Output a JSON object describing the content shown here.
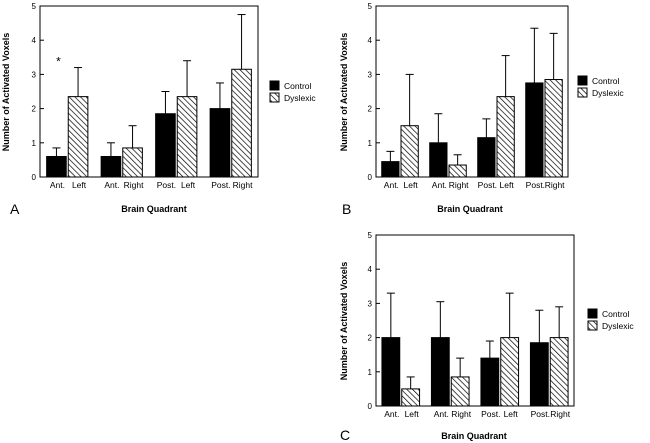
{
  "chart_data": [
    {
      "type": "bar",
      "panel_label": "A",
      "ylabel": "Number of Activated Voxels",
      "xlabel": "Brain Quadrant",
      "ylim": [
        0,
        5
      ],
      "yticks": [
        "0",
        "1",
        "2",
        "3",
        "4",
        "5"
      ],
      "categories": [
        "Ant. Left",
        "Ant. Right",
        "Post. Left",
        "Post. Right"
      ],
      "category_labels": [
        [
          "Ant.",
          "Left"
        ],
        [
          "Ant.",
          "Right"
        ],
        [
          "Post.",
          "Left"
        ],
        [
          "Post.",
          "Right"
        ]
      ],
      "series": [
        {
          "name": "Control",
          "values": [
            0.6,
            0.6,
            1.85,
            2.0
          ],
          "errors": [
            0.25,
            0.4,
            0.65,
            0.75
          ]
        },
        {
          "name": "Dyslexic",
          "values": [
            2.35,
            0.85,
            2.35,
            3.15
          ],
          "errors": [
            0.85,
            0.65,
            1.05,
            1.6
          ]
        }
      ],
      "annotation": {
        "text": "*",
        "category": "Ant. Left"
      },
      "legend": {
        "position": "right"
      }
    },
    {
      "type": "bar",
      "panel_label": "B",
      "ylabel": "Number of Activated Voxels",
      "xlabel": "Brain Quadrant",
      "ylim": [
        0,
        5
      ],
      "yticks": [
        "0",
        "1",
        "2",
        "3",
        "4",
        "5"
      ],
      "categories": [
        "Ant. Left",
        "Ant. Right",
        "Post. Left",
        "Post. Right"
      ],
      "category_labels": [
        [
          "Ant.",
          "Left"
        ],
        [
          "Ant.",
          "Right"
        ],
        [
          "Post.",
          "Left"
        ],
        [
          "Post.",
          "Right"
        ]
      ],
      "series": [
        {
          "name": "Control",
          "values": [
            0.45,
            1.0,
            1.15,
            2.75
          ],
          "errors": [
            0.3,
            0.85,
            0.55,
            1.6
          ]
        },
        {
          "name": "Dyslexic",
          "values": [
            1.5,
            0.35,
            2.35,
            2.85
          ],
          "errors": [
            1.5,
            0.3,
            1.2,
            1.35
          ]
        }
      ],
      "legend": {
        "position": "right"
      }
    },
    {
      "type": "bar",
      "panel_label": "C",
      "ylabel": "Number of Activated Voxels",
      "xlabel": "Brain Quadrant",
      "ylim": [
        0,
        5
      ],
      "yticks": [
        "0",
        "1",
        "2",
        "3",
        "4",
        "5"
      ],
      "categories": [
        "Ant. Left",
        "Ant. Right",
        "Post. Left",
        "Post. Right"
      ],
      "category_labels": [
        [
          "Ant.",
          "Left"
        ],
        [
          "Ant.",
          "Right"
        ],
        [
          "Post.",
          "Left"
        ],
        [
          "Post.",
          "Right"
        ]
      ],
      "series": [
        {
          "name": "Control",
          "values": [
            2.0,
            2.0,
            1.4,
            1.85
          ],
          "errors": [
            1.3,
            1.05,
            0.5,
            0.95
          ]
        },
        {
          "name": "Dyslexic",
          "values": [
            0.5,
            0.85,
            2.0,
            2.0
          ],
          "errors": [
            0.35,
            0.55,
            1.3,
            0.9
          ]
        }
      ],
      "legend": {
        "position": "right"
      }
    }
  ],
  "colors": {
    "control": "#000000",
    "dyslexic_hatch": "#000000",
    "background": "#ffffff"
  }
}
